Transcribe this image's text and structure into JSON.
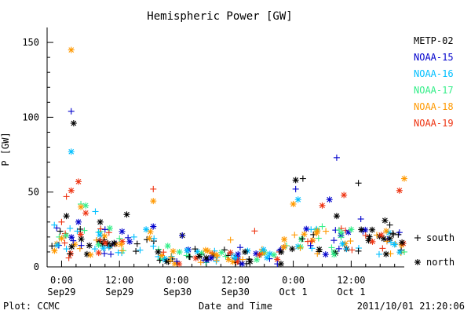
{
  "chart_data": {
    "type": "scatter",
    "title": "Hemispheric Power [GW]",
    "xlabel": "Date and Time",
    "ylabel": "P [GW]",
    "ylim": [
      0,
      160
    ],
    "xlim": [
      "2011-09-28T21:00",
      "2011-10-01T23:00"
    ],
    "grid": false,
    "legend_position": "right",
    "yticks": [
      0,
      50,
      100,
      150
    ],
    "xticks": [
      {
        "x": "2011-09-29T00:00",
        "line1": "0:00",
        "line2": "Sep29"
      },
      {
        "x": "2011-09-29T12:00",
        "line1": "12:00",
        "line2": "Sep29"
      },
      {
        "x": "2011-09-30T00:00",
        "line1": "0:00",
        "line2": "Sep30"
      },
      {
        "x": "2011-09-30T12:00",
        "line1": "12:00",
        "line2": "Sep30"
      },
      {
        "x": "2011-10-01T00:00",
        "line1": "0:00",
        "line2": "Oct 1"
      },
      {
        "x": "2011-10-01T12:00",
        "line1": "12:00",
        "line2": "Oct 1"
      }
    ],
    "marker_legend": [
      {
        "symbol": "+",
        "label": "south"
      },
      {
        "symbol": "*",
        "label": "north"
      }
    ],
    "series": [
      {
        "name": "METP-02",
        "color": "#000000",
        "points": [
          [
            "2011-09-28T22:00",
            14,
            "+"
          ],
          [
            "2011-09-29T01:00",
            34,
            "*"
          ],
          [
            "2011-09-29T02:30",
            96,
            "*"
          ],
          [
            "2011-09-29T08:00",
            30,
            "*"
          ],
          [
            "2011-09-29T13:30",
            35,
            "*"
          ],
          [
            "2011-09-29T20:00",
            10,
            "*"
          ],
          [
            "2011-09-30T01:00",
            21,
            "*"
          ],
          [
            "2011-09-30T06:00",
            6,
            "*"
          ],
          [
            "2011-09-30T14:00",
            10,
            "*"
          ],
          [
            "2011-09-30T21:30",
            10,
            "*"
          ],
          [
            "2011-10-01T00:30",
            58,
            "*"
          ],
          [
            "2011-10-01T02:00",
            59,
            "+"
          ],
          [
            "2011-10-01T09:00",
            34,
            "*"
          ],
          [
            "2011-10-01T13:30",
            56,
            "+"
          ],
          [
            "2011-10-01T19:00",
            31,
            "*"
          ],
          [
            "2011-10-01T20:00",
            28,
            "+"
          ]
        ]
      },
      {
        "name": "NOAA-15",
        "color": "#0000cc",
        "points": [
          [
            "2011-09-28T23:00",
            26,
            "+"
          ],
          [
            "2011-09-29T02:00",
            104,
            "+"
          ],
          [
            "2011-09-29T03:30",
            30,
            "*"
          ],
          [
            "2011-09-29T09:00",
            25,
            "+"
          ],
          [
            "2011-09-29T19:00",
            27,
            "*"
          ],
          [
            "2011-09-30T01:00",
            21,
            "+"
          ],
          [
            "2011-09-30T07:00",
            6,
            "*"
          ],
          [
            "2011-09-30T13:00",
            13,
            "+"
          ],
          [
            "2011-09-30T22:00",
            13,
            "+"
          ],
          [
            "2011-10-01T00:30",
            52,
            "+"
          ],
          [
            "2011-10-01T07:30",
            45,
            "*"
          ],
          [
            "2011-10-01T09:00",
            73,
            "+"
          ],
          [
            "2011-10-01T14:00",
            32,
            "+"
          ],
          [
            "2011-10-01T22:00",
            23,
            "+"
          ]
        ]
      },
      {
        "name": "NOAA-16",
        "color": "#00bfff",
        "points": [
          [
            "2011-09-28T22:30",
            28,
            "+"
          ],
          [
            "2011-09-29T02:00",
            77,
            "*"
          ],
          [
            "2011-09-29T07:00",
            37,
            "+"
          ],
          [
            "2011-09-29T15:00",
            20,
            "+"
          ],
          [
            "2011-09-30T02:00",
            11,
            "*"
          ],
          [
            "2011-09-30T12:00",
            6,
            "+"
          ],
          [
            "2011-10-01T01:00",
            45,
            "*"
          ],
          [
            "2011-10-01T11:00",
            12,
            "+"
          ],
          [
            "2011-10-01T21:00",
            15,
            "*"
          ]
        ]
      },
      {
        "name": "NOAA-17",
        "color": "#33ee88",
        "points": [
          [
            "2011-09-28T23:30",
            20,
            "+"
          ],
          [
            "2011-09-29T04:00",
            42,
            "+"
          ],
          [
            "2011-09-29T05:00",
            41,
            "*"
          ],
          [
            "2011-09-29T12:00",
            19,
            "+"
          ],
          [
            "2011-09-29T22:00",
            14,
            "*"
          ],
          [
            "2011-09-30T10:00",
            7,
            "+"
          ],
          [
            "2011-09-30T20:00",
            8,
            "*"
          ],
          [
            "2011-10-01T06:00",
            27,
            "+"
          ],
          [
            "2011-10-01T12:00",
            25,
            "*"
          ],
          [
            "2011-10-01T23:00",
            10,
            "+"
          ]
        ]
      },
      {
        "name": "NOAA-18",
        "color": "#ff9900",
        "points": [
          [
            "2011-09-29T00:00",
            19,
            "*"
          ],
          [
            "2011-09-29T02:00",
            145,
            "*"
          ],
          [
            "2011-09-29T04:00",
            40,
            "*"
          ],
          [
            "2011-09-29T06:00",
            8,
            "*"
          ],
          [
            "2011-09-29T19:00",
            44,
            "*"
          ],
          [
            "2011-09-30T08:00",
            8,
            "*"
          ],
          [
            "2011-09-30T11:00",
            18,
            "+"
          ],
          [
            "2011-09-30T22:00",
            13,
            "*"
          ],
          [
            "2011-10-01T00:00",
            42,
            "*"
          ],
          [
            "2011-10-01T05:00",
            24,
            "*"
          ],
          [
            "2011-10-01T23:00",
            59,
            "*"
          ]
        ]
      },
      {
        "name": "NOAA-19",
        "color": "#ee3311",
        "points": [
          [
            "2011-09-29T00:00",
            30,
            "+"
          ],
          [
            "2011-09-29T01:00",
            47,
            "+"
          ],
          [
            "2011-09-29T01:30",
            6,
            "+"
          ],
          [
            "2011-09-29T02:00",
            51,
            "*"
          ],
          [
            "2011-09-29T03:30",
            57,
            "*"
          ],
          [
            "2011-09-29T05:00",
            36,
            "*"
          ],
          [
            "2011-09-29T19:00",
            52,
            "+"
          ],
          [
            "2011-09-30T16:00",
            24,
            "+"
          ],
          [
            "2011-09-30T17:00",
            8,
            "*"
          ],
          [
            "2011-10-01T03:00",
            17,
            "+"
          ],
          [
            "2011-10-01T06:00",
            41,
            "*"
          ],
          [
            "2011-10-01T10:30",
            48,
            "*"
          ],
          [
            "2011-10-01T22:00",
            51,
            "*"
          ]
        ]
      }
    ],
    "background_clouds": [
      {
        "start": "2011-09-28T22:00",
        "end": "2011-09-29T20:00",
        "lo": 8,
        "hi": 26
      },
      {
        "start": "2011-09-29T20:00",
        "end": "2011-09-30T22:00",
        "lo": 2,
        "hi": 12
      },
      {
        "start": "2011-09-30T22:00",
        "end": "2011-10-01T23:00",
        "lo": 8,
        "hi": 26
      }
    ]
  },
  "footer": {
    "left": "Plot: CCMC",
    "right": "2011/10/01 21:20:06"
  }
}
